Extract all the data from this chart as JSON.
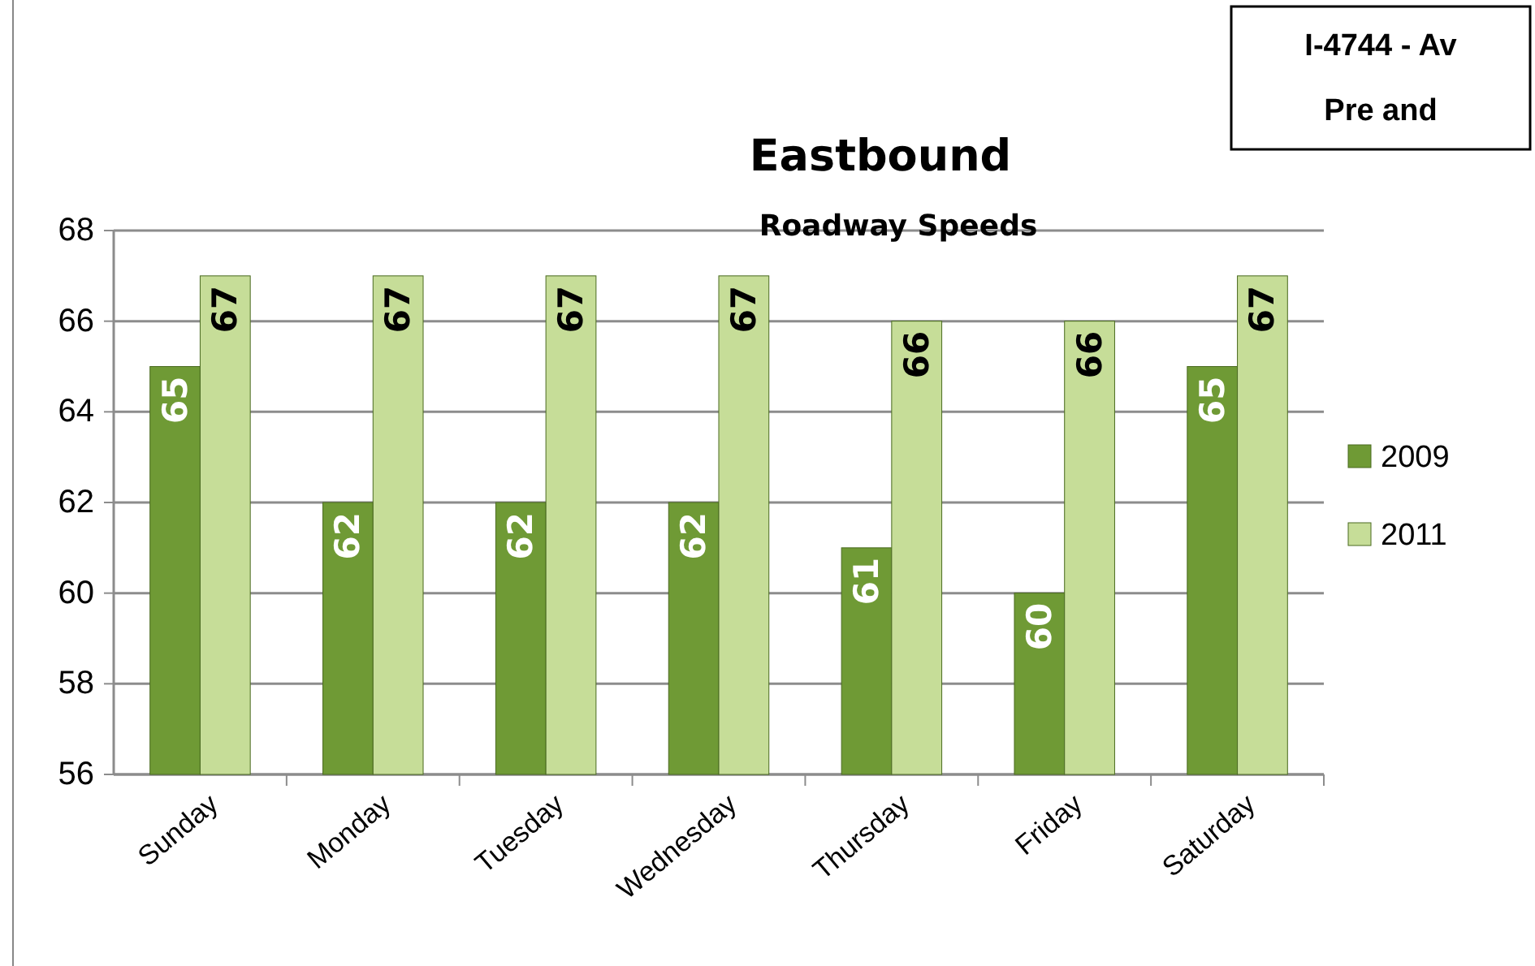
{
  "chart_data": {
    "type": "bar",
    "title": "Eastbound",
    "subtitle": "Roadway Speeds",
    "annotations": [
      "I-4744 - Av",
      "Pre and"
    ],
    "categories": [
      "Sunday",
      "Monday",
      "Tuesday",
      "Wednesday",
      "Thursday",
      "Friday",
      "Saturday"
    ],
    "series": [
      {
        "name": "2009",
        "color": "#6f9a35",
        "values": [
          65,
          62,
          62,
          62,
          61,
          60,
          65
        ]
      },
      {
        "name": "2011",
        "color": "#c6dd98",
        "values": [
          67,
          67,
          67,
          67,
          66,
          66,
          67
        ]
      }
    ],
    "ylim": [
      56,
      68
    ],
    "yticks": [
      56,
      58,
      60,
      62,
      64,
      66,
      68
    ],
    "grid": "y",
    "legend": "right",
    "data_labels": true
  }
}
